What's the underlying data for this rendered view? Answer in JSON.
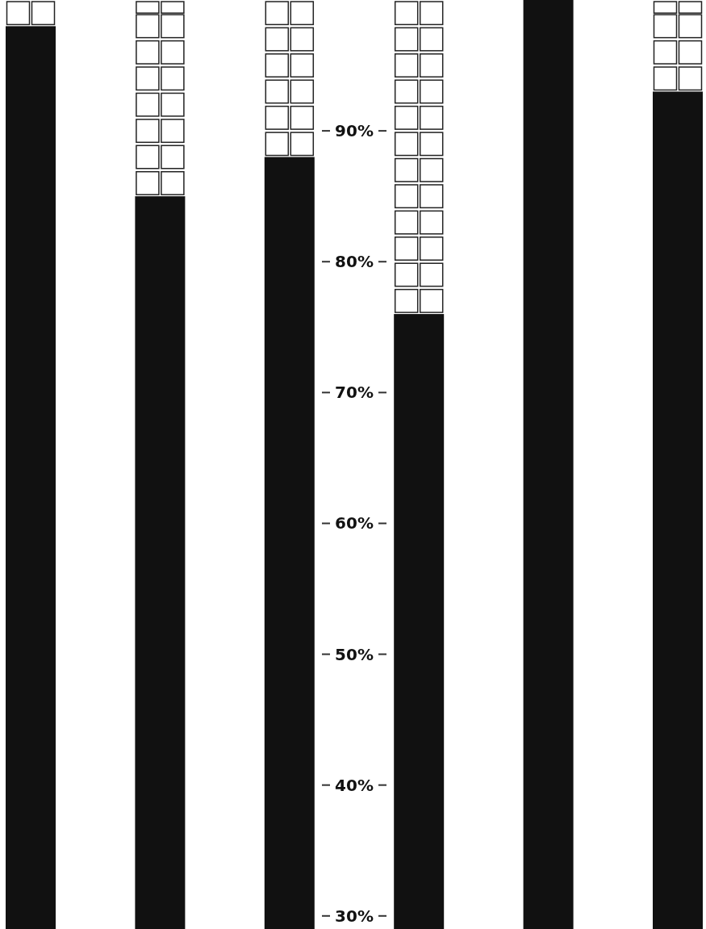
{
  "chart_data": {
    "type": "bar",
    "categories": [
      null,
      null,
      null,
      null,
      null,
      null
    ],
    "values": [
      98,
      85,
      88,
      76,
      100,
      93
    ],
    "color": "#111111",
    "ylim": [
      29,
      100
    ],
    "yticks": [
      {
        "value": 30,
        "label": "30%"
      },
      {
        "value": 40,
        "label": "40%"
      },
      {
        "value": 50,
        "label": "50%"
      },
      {
        "value": 60,
        "label": "60%"
      },
      {
        "value": 70,
        "label": "70%"
      },
      {
        "value": 80,
        "label": "80%"
      },
      {
        "value": 90,
        "label": "90%"
      }
    ],
    "grid": false
  }
}
